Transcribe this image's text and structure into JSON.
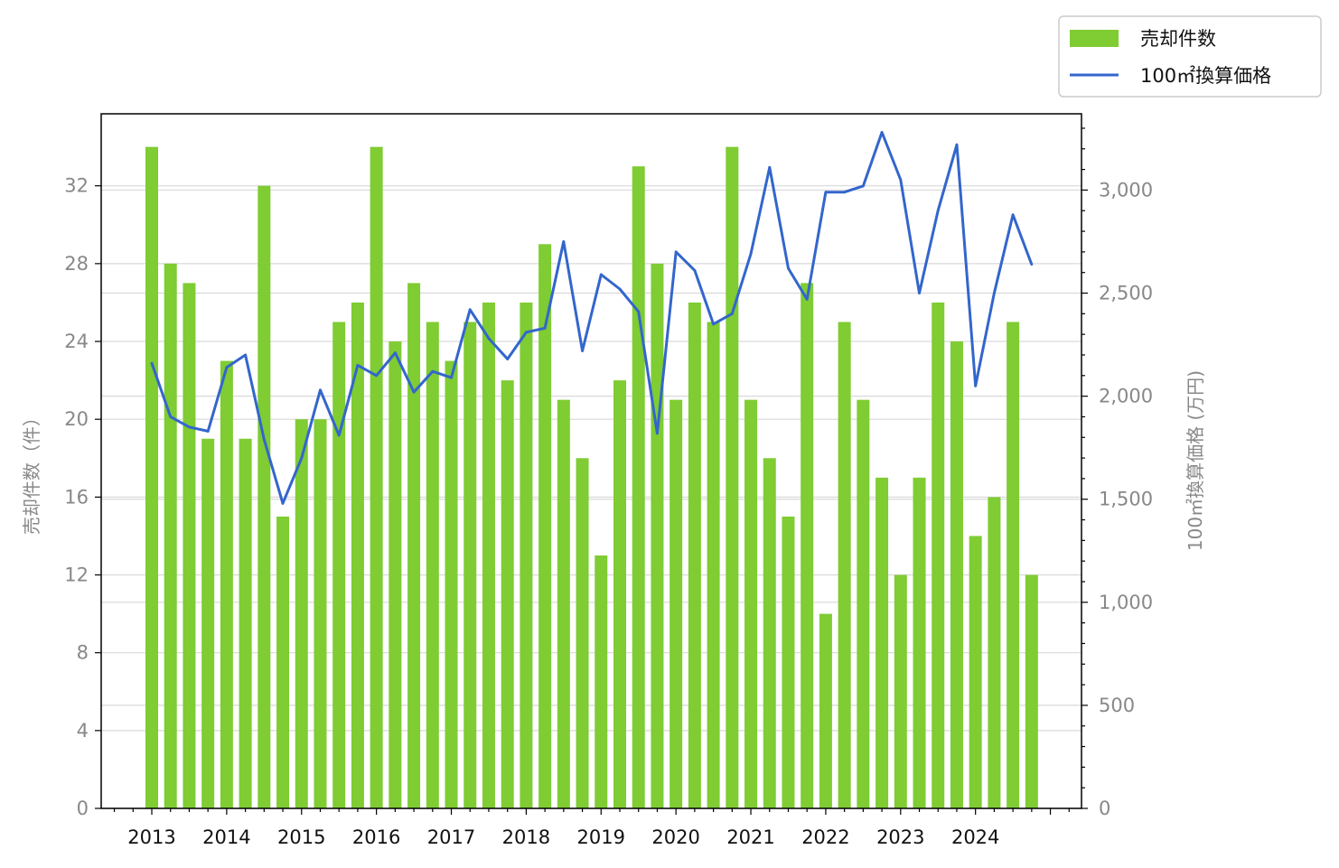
{
  "chart_data": {
    "type": "bar",
    "colors": {
      "bars": "#7fcc33",
      "line": "#3366cc",
      "grid": "#d9d9d9"
    },
    "x_tick_labels": [
      "2013",
      "2014",
      "2015",
      "2016",
      "2017",
      "2018",
      "2019",
      "2020",
      "2021",
      "2022",
      "2023",
      "2024"
    ],
    "y_left": {
      "label": "売却件数（件）",
      "ticks": [
        "0",
        "4",
        "8",
        "12",
        "16",
        "20",
        "24",
        "28",
        "32"
      ],
      "ylim": [
        0,
        35.7
      ]
    },
    "y_right": {
      "label": "100㎡換算価格 (万円)",
      "ticks": [
        "0",
        "500",
        "1,000",
        "1,500",
        "2,000",
        "2,500",
        "3,000"
      ],
      "ylim": [
        0,
        3370
      ]
    },
    "grid": true,
    "legend": {
      "placement": "top-right"
    },
    "series": [
      {
        "name": "売却件数",
        "type": "bar",
        "axis": "left",
        "values": [
          34,
          28,
          27,
          19,
          23,
          19,
          32,
          15,
          20,
          20,
          25,
          26,
          34,
          24,
          27,
          25,
          23,
          25,
          26,
          22,
          26,
          29,
          21,
          18,
          13,
          22,
          33,
          28,
          21,
          26,
          25,
          34,
          21,
          18,
          15,
          27,
          10,
          25,
          21,
          17,
          12,
          17,
          26,
          24,
          14,
          16,
          25,
          12
        ]
      },
      {
        "name": "100㎡換算価格",
        "type": "line",
        "axis": "right",
        "values": [
          2160,
          1900,
          1850,
          1830,
          2140,
          2200,
          1790,
          1480,
          1700,
          2030,
          1810,
          2150,
          2100,
          2210,
          2020,
          2120,
          2090,
          2420,
          2280,
          2180,
          2310,
          2330,
          2750,
          2220,
          2590,
          2520,
          2410,
          1820,
          2700,
          2610,
          2350,
          2400,
          2690,
          3110,
          2620,
          2470,
          2990,
          2990,
          3020,
          3280,
          3050,
          2500,
          2900,
          3220,
          2050,
          2500,
          2880,
          2640
        ]
      }
    ]
  }
}
